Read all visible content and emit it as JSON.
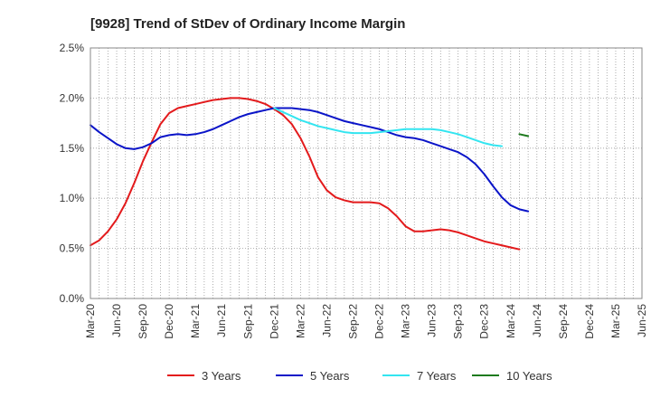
{
  "chart_data": {
    "type": "line",
    "title": "[9928]  Trend of StDev of Ordinary Income Margin",
    "xlabel": "",
    "ylabel": "",
    "ylim": [
      0,
      2.5
    ],
    "y_ticks": [
      "0.0%",
      "0.5%",
      "1.0%",
      "1.5%",
      "2.0%",
      "2.5%"
    ],
    "x_ticks": [
      "Mar-20",
      "Jun-20",
      "Sep-20",
      "Dec-20",
      "Mar-21",
      "Jun-21",
      "Sep-21",
      "Dec-21",
      "Mar-22",
      "Jun-22",
      "Sep-22",
      "Dec-22",
      "Mar-23",
      "Jun-23",
      "Sep-23",
      "Dec-23",
      "Mar-24",
      "Jun-24",
      "Sep-24",
      "Dec-24",
      "Mar-25",
      "Jun-25"
    ],
    "grid": true,
    "legend_position": "bottom",
    "series": [
      {
        "name": "3 Years",
        "color": "#e31a1c",
        "start_index": 0,
        "values": [
          0.53,
          0.58,
          0.67,
          0.79,
          0.95,
          1.15,
          1.37,
          1.56,
          1.74,
          1.85,
          1.9,
          1.92,
          1.94,
          1.96,
          1.98,
          1.99,
          2.0,
          2.0,
          1.99,
          1.97,
          1.94,
          1.89,
          1.83,
          1.74,
          1.6,
          1.42,
          1.21,
          1.08,
          1.01,
          0.98,
          0.96,
          0.96,
          0.96,
          0.95,
          0.9,
          0.82,
          0.72,
          0.67,
          0.67,
          0.68,
          0.69,
          0.68,
          0.66,
          0.63,
          0.6,
          0.57,
          0.55,
          0.53,
          0.51,
          0.49
        ]
      },
      {
        "name": "5 Years",
        "color": "#0a14c8",
        "start_index": 0,
        "values": [
          1.73,
          1.66,
          1.6,
          1.54,
          1.5,
          1.49,
          1.51,
          1.55,
          1.61,
          1.63,
          1.64,
          1.63,
          1.64,
          1.66,
          1.69,
          1.73,
          1.77,
          1.81,
          1.84,
          1.86,
          1.88,
          1.9,
          1.9,
          1.9,
          1.89,
          1.88,
          1.86,
          1.83,
          1.8,
          1.77,
          1.75,
          1.73,
          1.71,
          1.69,
          1.66,
          1.63,
          1.61,
          1.6,
          1.58,
          1.55,
          1.52,
          1.49,
          1.46,
          1.41,
          1.34,
          1.24,
          1.12,
          1.01,
          0.93,
          0.89,
          0.87
        ]
      },
      {
        "name": "7 Years",
        "color": "#33e5f0",
        "start_index": 21,
        "values": [
          1.9,
          1.86,
          1.82,
          1.78,
          1.75,
          1.72,
          1.7,
          1.68,
          1.66,
          1.65,
          1.65,
          1.65,
          1.66,
          1.67,
          1.68,
          1.69,
          1.69,
          1.69,
          1.69,
          1.68,
          1.66,
          1.64,
          1.61,
          1.58,
          1.55,
          1.53,
          1.52
        ]
      },
      {
        "name": "10 Years",
        "color": "#1e7a1e",
        "start_index": 49,
        "values": [
          1.64,
          1.62
        ]
      }
    ]
  }
}
